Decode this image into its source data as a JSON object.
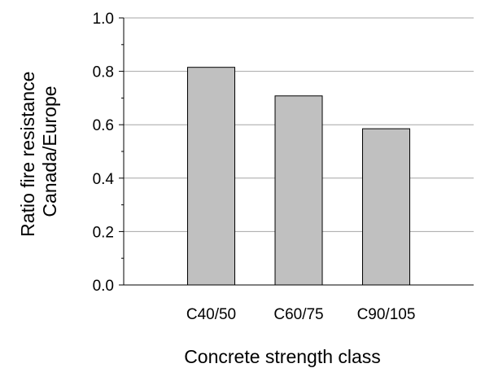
{
  "chart_data": {
    "type": "bar",
    "title": "",
    "categories": [
      "C40/50",
      "C60/75",
      "C90/105"
    ],
    "values": [
      0.815,
      0.708,
      0.585
    ],
    "xlabel": "Concrete strength class",
    "ylabel": [
      "Ratio fire resistance",
      "Canada/Europe"
    ],
    "ylim": [
      0,
      1.0
    ],
    "yticks": [
      "0.0",
      "0.2",
      "0.4",
      "0.6",
      "0.8",
      "1.0"
    ],
    "grid": true,
    "legend": "none",
    "colors": {
      "bar_fill": "#c0c0c0",
      "bar_stroke": "#000000",
      "grid": "#a6a6a6",
      "axis": "#000000"
    }
  }
}
